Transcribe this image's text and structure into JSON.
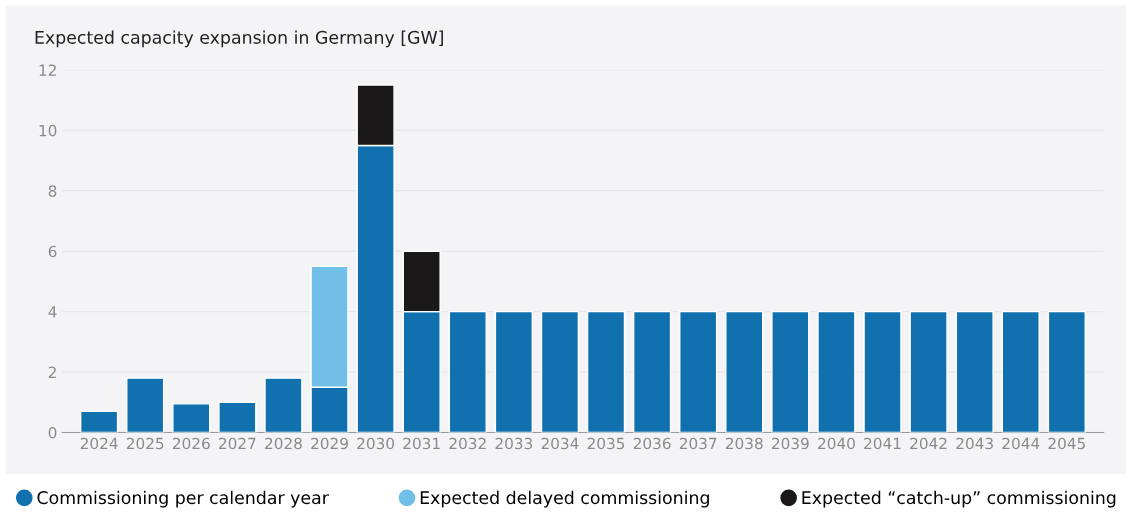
{
  "chart_data": {
    "type": "bar",
    "title": "Expected capacity expansion in Germany [GW]",
    "categories": [
      "2024",
      "2025",
      "2026",
      "2027",
      "2028",
      "2029",
      "2030",
      "2031",
      "2032",
      "2033",
      "2034",
      "2035",
      "2036",
      "2037",
      "2038",
      "2039",
      "2040",
      "2041",
      "2042",
      "2043",
      "2044",
      "2045"
    ],
    "series": [
      {
        "name": "Commissioning per calendar year",
        "color": "#1170ae",
        "values": [
          0.7,
          1.8,
          0.95,
          1.0,
          1.8,
          1.5,
          9.5,
          4,
          4,
          4,
          4,
          4,
          4,
          4,
          4,
          4,
          4,
          4,
          4,
          4,
          4,
          4
        ]
      },
      {
        "name": "Expected delayed commissioning",
        "color": "#6fbfe6",
        "values": [
          null,
          null,
          null,
          null,
          null,
          4.0,
          null,
          null,
          null,
          null,
          null,
          null,
          null,
          null,
          null,
          null,
          null,
          null,
          null,
          null,
          null,
          null
        ]
      },
      {
        "name": "Expected “catch-up” commissioning",
        "color": "#1a1818",
        "values": [
          null,
          null,
          null,
          null,
          null,
          null,
          2.0,
          2.0,
          null,
          null,
          null,
          null,
          null,
          null,
          null,
          null,
          null,
          null,
          null,
          null,
          null,
          null
        ]
      }
    ],
    "stacked": true,
    "ylim": [
      0,
      12
    ],
    "yticks": [
      0,
      2,
      4,
      6,
      8,
      10,
      12
    ],
    "grid": "y",
    "legend": "bottom",
    "marker": "circle"
  }
}
